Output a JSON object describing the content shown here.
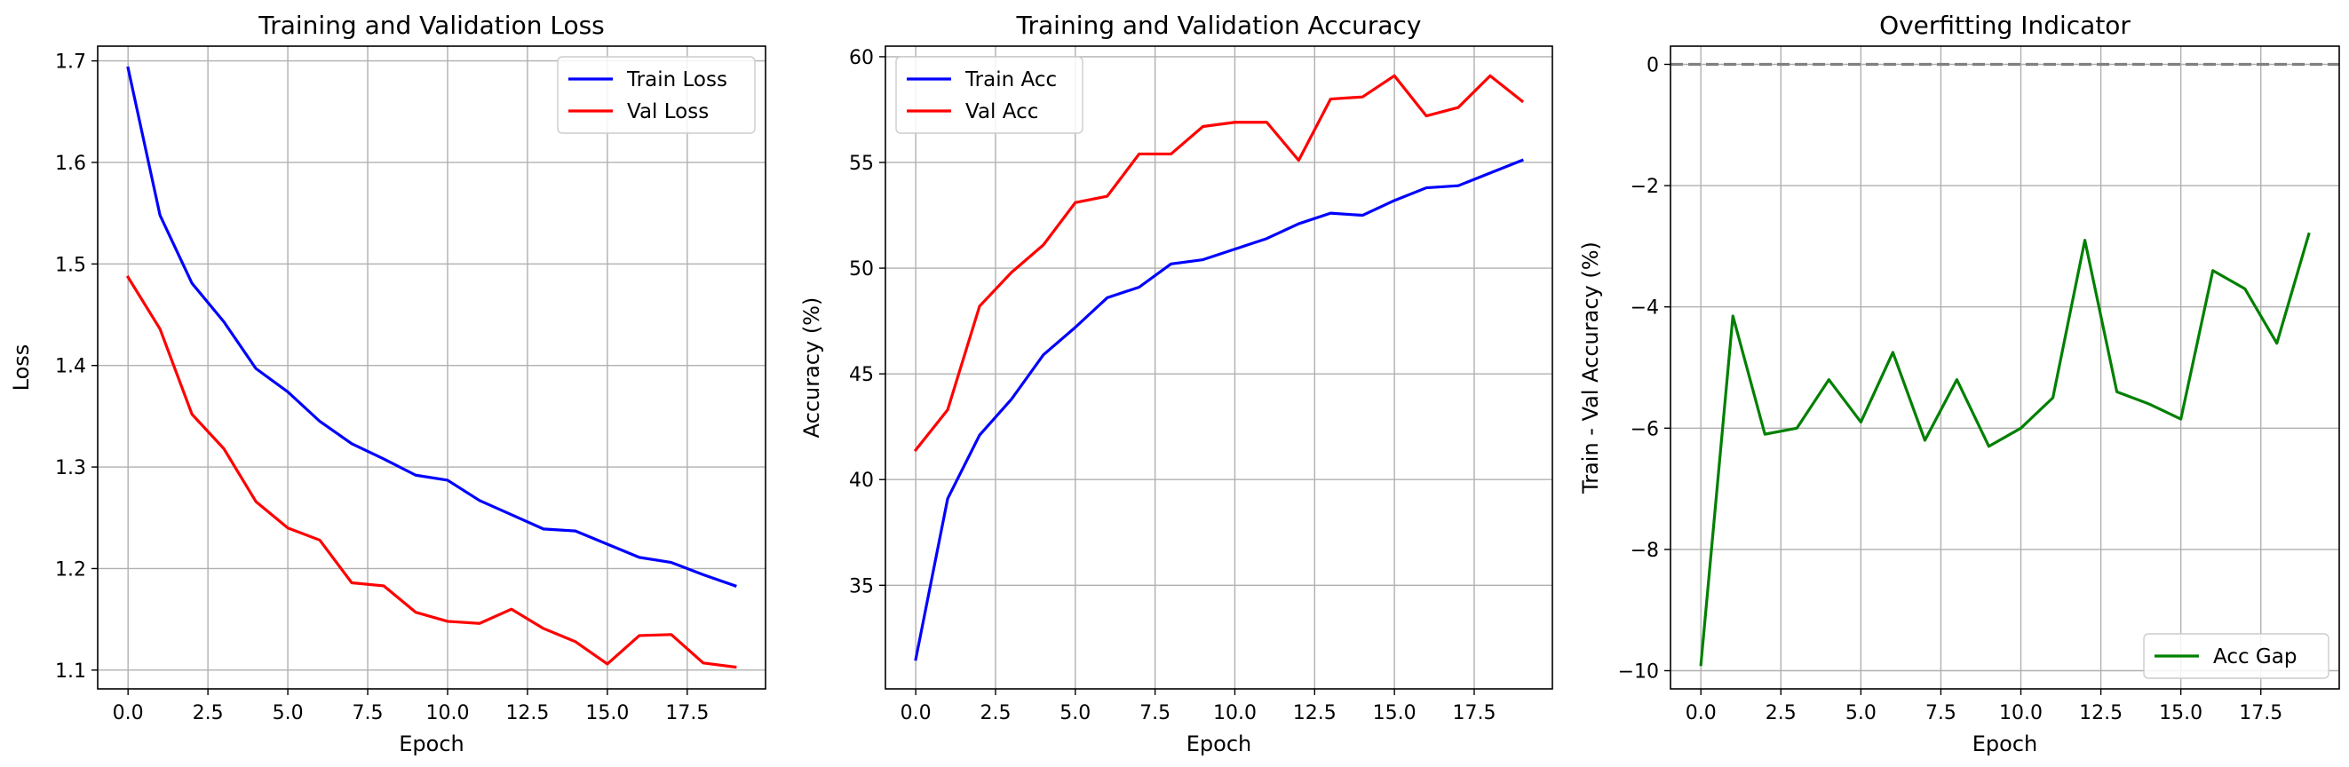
{
  "chart_data": [
    {
      "type": "line",
      "title": "Training and Validation Loss",
      "xlabel": "Epoch",
      "ylabel": "Loss",
      "xlim": [
        -0.95,
        19.95
      ],
      "ylim": [
        1.0815,
        1.7145
      ],
      "xticks": [
        0,
        2.5,
        5,
        7.5,
        10,
        12.5,
        15,
        17.5
      ],
      "xtick_labels": [
        "0.0",
        "2.5",
        "5.0",
        "7.5",
        "10.0",
        "12.5",
        "15.0",
        "17.5"
      ],
      "yticks": [
        1.1,
        1.2,
        1.3,
        1.4,
        1.5,
        1.6,
        1.7
      ],
      "ytick_labels": [
        "1.1",
        "1.2",
        "1.3",
        "1.4",
        "1.5",
        "1.6",
        "1.7"
      ],
      "grid": true,
      "legend": "top-right",
      "x": [
        0,
        1,
        2,
        3,
        4,
        5,
        6,
        7,
        8,
        9,
        10,
        11,
        12,
        13,
        14,
        15,
        16,
        17,
        18,
        19
      ],
      "series": [
        {
          "name": "Train Loss",
          "color": "#0000ff",
          "values": [
            1.693,
            1.548,
            1.481,
            1.443,
            1.397,
            1.374,
            1.345,
            1.323,
            1.308,
            1.292,
            1.287,
            1.267,
            1.253,
            1.239,
            1.237,
            1.224,
            1.211,
            1.206,
            1.194,
            1.183
          ]
        },
        {
          "name": "Val Loss",
          "color": "#ff0000",
          "values": [
            1.487,
            1.436,
            1.352,
            1.318,
            1.266,
            1.24,
            1.228,
            1.186,
            1.183,
            1.157,
            1.148,
            1.146,
            1.16,
            1.141,
            1.128,
            1.106,
            1.134,
            1.135,
            1.107,
            1.103
          ]
        }
      ]
    },
    {
      "type": "line",
      "title": "Training and Validation Accuracy",
      "xlabel": "Epoch",
      "ylabel": "Accuracy (%)",
      "xlim": [
        -0.95,
        19.95
      ],
      "ylim": [
        30.1,
        60.5
      ],
      "xticks": [
        0,
        2.5,
        5,
        7.5,
        10,
        12.5,
        15,
        17.5
      ],
      "xtick_labels": [
        "0.0",
        "2.5",
        "5.0",
        "7.5",
        "10.0",
        "12.5",
        "15.0",
        "17.5"
      ],
      "yticks": [
        35,
        40,
        45,
        50,
        55,
        60
      ],
      "ytick_labels": [
        "35",
        "40",
        "45",
        "50",
        "55",
        "60"
      ],
      "grid": true,
      "legend": "top-left",
      "x": [
        0,
        1,
        2,
        3,
        4,
        5,
        6,
        7,
        8,
        9,
        10,
        11,
        12,
        13,
        14,
        15,
        16,
        17,
        18,
        19
      ],
      "series": [
        {
          "name": "Train Acc",
          "color": "#0000ff",
          "values": [
            31.5,
            39.1,
            42.1,
            43.8,
            45.9,
            47.2,
            48.6,
            49.1,
            50.2,
            50.4,
            50.9,
            51.4,
            52.1,
            52.6,
            52.5,
            53.2,
            53.8,
            53.9,
            54.5,
            55.1
          ]
        },
        {
          "name": "Val Acc",
          "color": "#ff0000",
          "values": [
            41.4,
            43.3,
            48.2,
            49.8,
            51.1,
            53.1,
            53.4,
            55.4,
            55.4,
            56.7,
            56.9,
            56.9,
            55.1,
            58.0,
            58.1,
            59.1,
            57.2,
            57.6,
            59.1,
            57.9
          ]
        }
      ]
    },
    {
      "type": "line",
      "title": "Overfitting Indicator",
      "xlabel": "Epoch",
      "ylabel": "Train - Val Accuracy (%)",
      "xlim": [
        -0.95,
        19.95
      ],
      "ylim": [
        -10.3,
        0.3
      ],
      "xticks": [
        0,
        2.5,
        5,
        7.5,
        10,
        12.5,
        15,
        17.5
      ],
      "xtick_labels": [
        "0.0",
        "2.5",
        "5.0",
        "7.5",
        "10.0",
        "12.5",
        "15.0",
        "17.5"
      ],
      "yticks": [
        0,
        -2,
        -4,
        -6,
        -8,
        -10
      ],
      "ytick_labels": [
        "0",
        "−2",
        "−4",
        "−6",
        "−8",
        "−10"
      ],
      "grid": true,
      "legend": "bottom-right",
      "reference_line": {
        "y": 0,
        "color": "#808080",
        "style": "dashed"
      },
      "x": [
        0,
        1,
        2,
        3,
        4,
        5,
        6,
        7,
        8,
        9,
        10,
        11,
        12,
        13,
        14,
        15,
        16,
        17,
        18,
        19
      ],
      "series": [
        {
          "name": "Acc Gap",
          "color": "#008000",
          "values": [
            -9.9,
            -4.15,
            -6.1,
            -6.0,
            -5.2,
            -5.9,
            -4.75,
            -6.2,
            -5.2,
            -6.3,
            -6.0,
            -5.5,
            -2.9,
            -5.4,
            -5.6,
            -5.85,
            -3.4,
            -3.7,
            -4.6,
            -2.8
          ]
        }
      ]
    }
  ]
}
